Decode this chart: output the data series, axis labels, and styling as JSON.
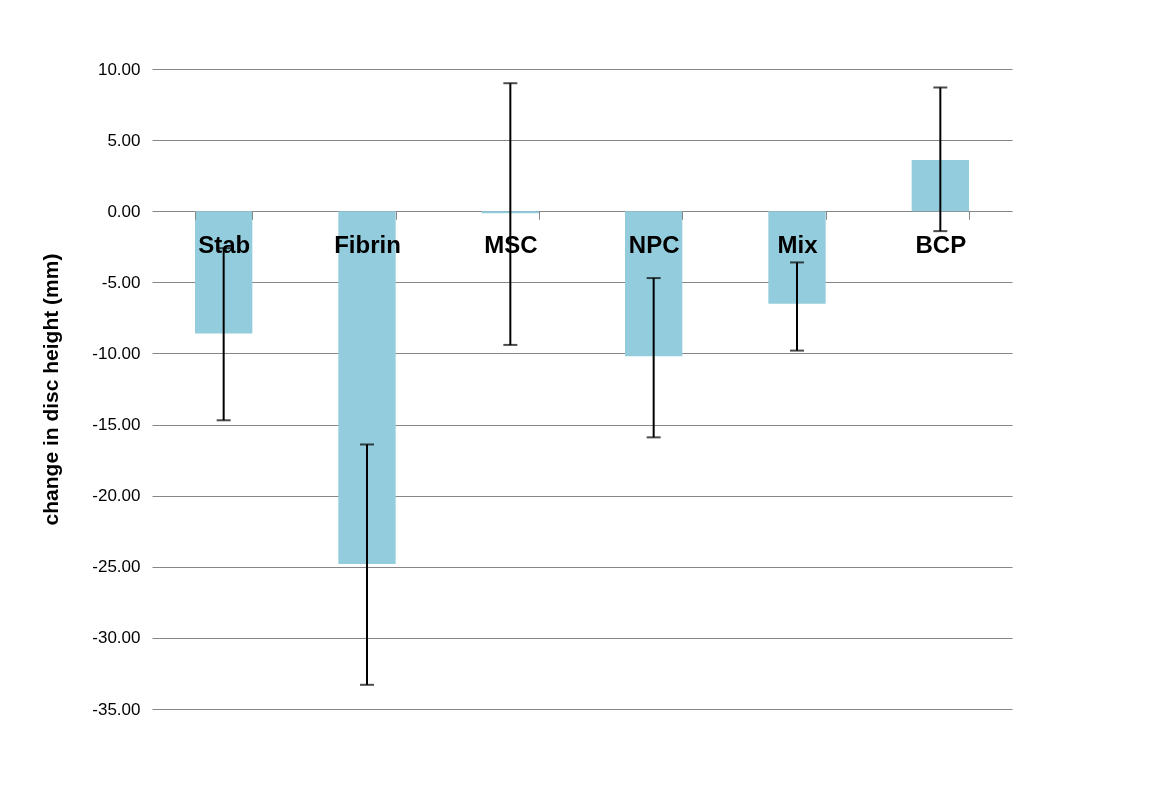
{
  "chart_data": {
    "type": "bar",
    "ylabel": "change in disc height (mm)",
    "categories": [
      "Stab",
      "Fibrin",
      "MSC",
      "NPC",
      "Mix",
      "BCP"
    ],
    "values": [
      -8.6,
      -24.8,
      -0.15,
      -10.2,
      -6.5,
      3.6
    ],
    "errors": [
      [
        -14.7,
        -2.6
      ],
      [
        -33.3,
        -16.4
      ],
      [
        -9.4,
        9.0
      ],
      [
        -15.9,
        -4.7
      ],
      [
        -9.8,
        -3.6
      ],
      [
        -1.4,
        8.7
      ]
    ],
    "color": "#93cddd",
    "ylim": [
      -35,
      10
    ],
    "yticks": [
      {
        "value": -35,
        "label": "-35.00"
      },
      {
        "value": -30,
        "label": "-30.00"
      },
      {
        "value": -25,
        "label": "-25.00"
      },
      {
        "value": -20,
        "label": "-20.00"
      },
      {
        "value": -15,
        "label": "-15.00"
      },
      {
        "value": -10,
        "label": "-10.00"
      },
      {
        "value": -5,
        "label": "-5.00"
      },
      {
        "value": 0,
        "label": "0.00"
      },
      {
        "value": 5,
        "label": "5.00"
      },
      {
        "value": 10,
        "label": "10.00"
      }
    ],
    "grid": "y"
  }
}
